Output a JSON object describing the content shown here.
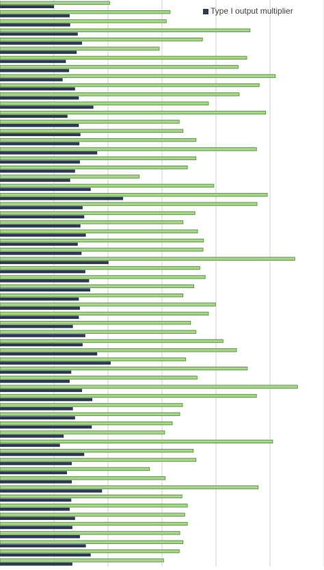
{
  "chart_data": {
    "type": "hbar",
    "categories": [
      null,
      null,
      null,
      null,
      null,
      null,
      null,
      null,
      null,
      null,
      null,
      null,
      null,
      null,
      null,
      null,
      null,
      null,
      null,
      null,
      null,
      null,
      null,
      null,
      null,
      null,
      null,
      null,
      null,
      null,
      null,
      null,
      null,
      null,
      null,
      null,
      null,
      null,
      null,
      null,
      null,
      null,
      null,
      null,
      null,
      null,
      null,
      null,
      null,
      null,
      null,
      null,
      null,
      null,
      null,
      null,
      null,
      null,
      null,
      null,
      null,
      null
    ],
    "series": [
      {
        "name": "Type I output multiplier",
        "color": "#2e3a4f",
        "values": [
          1.0,
          1.29,
          1.3,
          1.44,
          1.52,
          1.42,
          1.22,
          1.28,
          1.16,
          1.39,
          1.46,
          1.73,
          1.25,
          1.46,
          1.49,
          1.47,
          1.8,
          1.48,
          1.39,
          1.3,
          1.68,
          2.28,
          1.53,
          1.56,
          1.49,
          1.59,
          1.44,
          1.51,
          2.01,
          1.58,
          1.65,
          1.67,
          1.46,
          1.48,
          1.46,
          1.35,
          1.58,
          1.53,
          1.8,
          2.05,
          1.32,
          1.29,
          1.52,
          1.71,
          1.35,
          1.39,
          1.7,
          1.18,
          1.11,
          1.56,
          1.33,
          1.24,
          1.33,
          1.89,
          1.32,
          1.29,
          1.39,
          1.34,
          1.48,
          1.59,
          1.68,
          1.34
        ]
      },
      {
        "color": "#a9d18e",
        "values": [
          2.03,
          3.15,
          3.08,
          4.63,
          3.75,
          2.95,
          4.57,
          4.41,
          5.1,
          4.8,
          4.43,
          3.86,
          4.92,
          3.32,
          3.39,
          3.63,
          4.75,
          3.63,
          3.47,
          2.58,
          3.96,
          4.95,
          4.76,
          3.61,
          3.39,
          3.66,
          3.77,
          3.76,
          5.46,
          3.7,
          3.8,
          3.59,
          3.39,
          3.99,
          3.86,
          3.53,
          3.63,
          4.13,
          4.38,
          3.44,
          4.58,
          3.65,
          5.51,
          4.75,
          3.38,
          3.33,
          3.19,
          3.05,
          5.05,
          3.58,
          3.63,
          2.77,
          3.06,
          4.78,
          3.37,
          3.47,
          3.42,
          3.47,
          3.33,
          3.39,
          3.32,
          3.03
        ]
      }
    ],
    "xlim": [
      0,
      6
    ],
    "xticks": [
      0,
      1,
      2,
      3,
      4,
      5,
      6
    ],
    "grid": true,
    "legend": "top-right"
  }
}
